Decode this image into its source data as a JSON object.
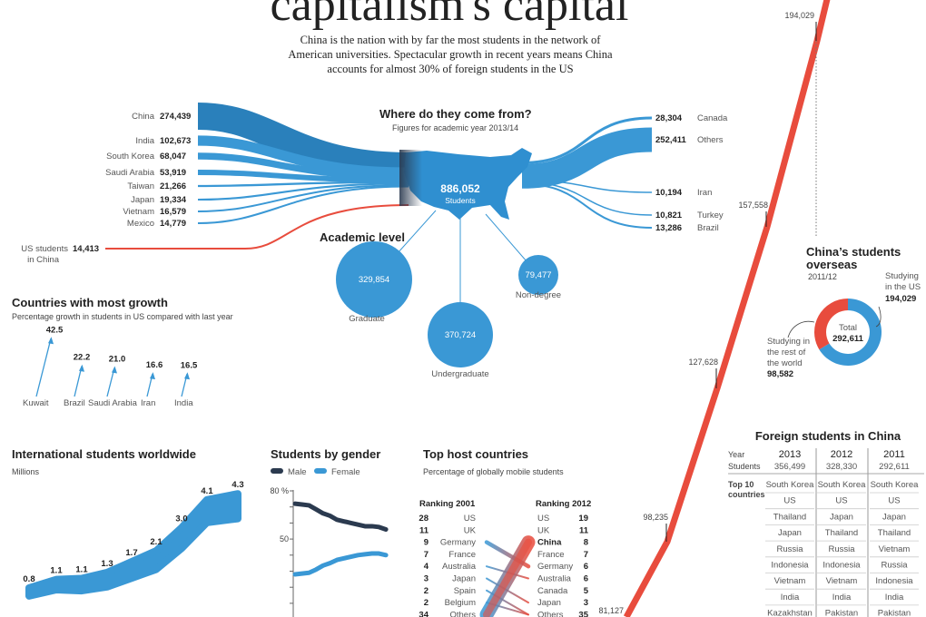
{
  "header": {
    "title": "capitalism's capital",
    "subtitle_lines": [
      "China is the nation with by far the most students in the network of",
      "American universities. Spectacular growth in recent years means China",
      "accounts for almost 30% of foreign students in the US"
    ]
  },
  "colors": {
    "blue": "#3a98d5",
    "dark_blue": "#2a80bb",
    "red": "#e84c3d",
    "navy": "#2b3a4f"
  },
  "sankey": {
    "title": "Where do they come from?",
    "subtitle": "Figures for academic year 2013/14",
    "total": "886,052",
    "total_label": "Students",
    "sources": [
      {
        "name": "China",
        "value": "274,439"
      },
      {
        "name": "India",
        "value": "102,673"
      },
      {
        "name": "South Korea",
        "value": "68,047"
      },
      {
        "name": "Saudi Arabia",
        "value": "53,919"
      },
      {
        "name": "Taiwan",
        "value": "21,266"
      },
      {
        "name": "Japan",
        "value": "19,334"
      },
      {
        "name": "Vietnam",
        "value": "16,579"
      },
      {
        "name": "Mexico",
        "value": "14,779"
      }
    ],
    "us_in_china": {
      "name_line1": "US students",
      "name_line2": "in China",
      "value": "14,413"
    },
    "right": [
      {
        "name": "Canada",
        "value": "28,304"
      },
      {
        "name": "Others",
        "value": "252,411"
      },
      {
        "name": "Iran",
        "value": "10,194"
      },
      {
        "name": "Turkey",
        "value": "10,821"
      },
      {
        "name": "Brazil",
        "value": "13,286"
      }
    ]
  },
  "academic": {
    "title": "Academic level",
    "levels": [
      {
        "name": "Graduate",
        "value": "329,854"
      },
      {
        "name": "Undergraduate",
        "value": "370,724"
      },
      {
        "name": "Non-degree",
        "value": "79,477"
      }
    ]
  },
  "growth": {
    "title": "Countries with most growth",
    "subtitle": "Percentage growth in students in US compared with last year",
    "items": [
      {
        "name": "Kuwait",
        "value": "42.5"
      },
      {
        "name": "Brazil",
        "value": "22.2"
      },
      {
        "name": "Saudi Arabia",
        "value": "21.0"
      },
      {
        "name": "Iran",
        "value": "16.6"
      },
      {
        "name": "India",
        "value": "16.5"
      }
    ]
  },
  "overseas_line": {
    "labels": [
      "194,029",
      "157,558",
      "127,628",
      "98,235",
      "81,127"
    ]
  },
  "donut": {
    "title_line1": "China’s students",
    "title_line2": "overseas",
    "period": "2011/12",
    "total_label": "Total",
    "total": "292,611",
    "us_line1": "Studying",
    "us_line2": "in the US",
    "us_value": "194,029",
    "rest_line1": "Studying in",
    "rest_line2": "the rest of",
    "rest_line3": "the world",
    "rest_value": "98,582"
  },
  "chart_data": [
    {
      "type": "area",
      "title": "International students worldwide",
      "ylabel": "Millions",
      "values": [
        0.8,
        1.1,
        1.1,
        1.3,
        1.7,
        2.1,
        3.0,
        4.1,
        4.3
      ],
      "labels": [
        "0.8",
        "1.1",
        "1.1",
        "1.3",
        "1.7",
        "2.1",
        "3.0",
        "4.1",
        "4.3"
      ]
    },
    {
      "type": "line",
      "title": "Students by gender",
      "ylim": [
        0,
        80
      ],
      "yticks": [
        "80 %",
        "50"
      ],
      "series": [
        {
          "name": "Male",
          "values": [
            72,
            71.5,
            71,
            68.5,
            66,
            64.5,
            62,
            61,
            60,
            59,
            58,
            58,
            57.5,
            56
          ]
        },
        {
          "name": "Female",
          "values": [
            28,
            28.5,
            29,
            31,
            33.5,
            35,
            37,
            38,
            39,
            40,
            40.5,
            41,
            41,
            40
          ]
        }
      ]
    },
    {
      "type": "table",
      "title": "Top host countries",
      "subtitle": "Percentage of globally mobile students",
      "left_header": "Ranking 2001",
      "right_header": "Ranking 2012",
      "left": [
        {
          "name": "US",
          "value": "28"
        },
        {
          "name": "UK",
          "value": "11"
        },
        {
          "name": "Germany",
          "value": "9"
        },
        {
          "name": "France",
          "value": "7"
        },
        {
          "name": "Australia",
          "value": "4"
        },
        {
          "name": "Japan",
          "value": "3"
        },
        {
          "name": "Spain",
          "value": "2"
        },
        {
          "name": "Belgium",
          "value": "2"
        },
        {
          "name": "Others",
          "value": "34"
        }
      ],
      "right": [
        {
          "name": "US",
          "value": "19"
        },
        {
          "name": "UK",
          "value": "11"
        },
        {
          "name": "China",
          "value": "8"
        },
        {
          "name": "France",
          "value": "7"
        },
        {
          "name": "Germany",
          "value": "6"
        },
        {
          "name": "Australia",
          "value": "6"
        },
        {
          "name": "Canada",
          "value": "5"
        },
        {
          "name": "Japan",
          "value": "3"
        },
        {
          "name": "Others",
          "value": "35"
        }
      ]
    },
    {
      "type": "pie",
      "title": "China’s students overseas",
      "values": [
        194029,
        98582
      ],
      "categories": [
        "Studying in the US",
        "Studying in the rest of the world"
      ]
    }
  ],
  "table": {
    "title": "Foreign students in China",
    "year_label": "Year",
    "students_label": "Students",
    "top_label_line1": "Top 10",
    "top_label_line2": "countries",
    "columns": [
      {
        "year": "2013",
        "students": "356,499",
        "countries": [
          "South Korea",
          "US",
          "Thailand",
          "Japan",
          "Russia",
          "Indonesia",
          "Vietnam",
          "India",
          "Kazakhstan"
        ]
      },
      {
        "year": "2012",
        "students": "328,330",
        "countries": [
          "South Korea",
          "US",
          "Japan",
          "Thailand",
          "Russia",
          "Indonesia",
          "Vietnam",
          "India",
          "Pakistan"
        ]
      },
      {
        "year": "2011",
        "students": "292,611",
        "countries": [
          "South Korea",
          "US",
          "Japan",
          "Thailand",
          "Vietnam",
          "Russia",
          "Indonesia",
          "India",
          "Pakistan"
        ]
      }
    ]
  }
}
